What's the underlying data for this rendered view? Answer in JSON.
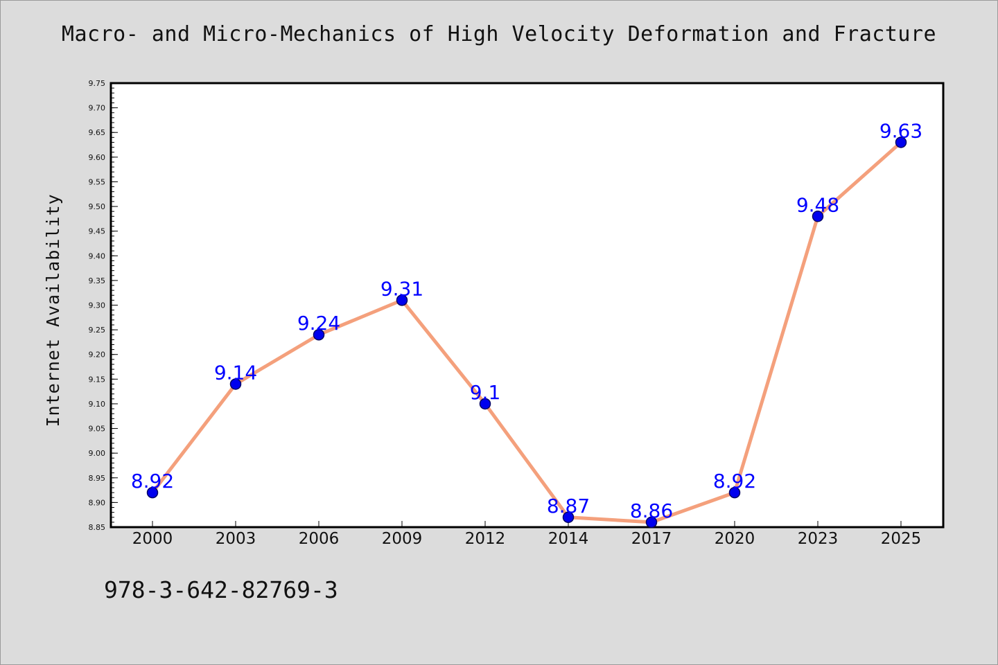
{
  "chart_data": {
    "type": "line",
    "title": "Macro- and Micro-Mechanics of High Velocity Deformation and Fracture",
    "ylabel": "Internet Availability",
    "xlabel": "",
    "categories": [
      "2000",
      "2003",
      "2006",
      "2009",
      "2012",
      "2014",
      "2017",
      "2020",
      "2023",
      "2025"
    ],
    "values": [
      8.92,
      9.14,
      9.24,
      9.31,
      9.1,
      8.87,
      8.86,
      8.92,
      9.48,
      9.63
    ],
    "data_labels": [
      "8.92",
      "9.14",
      "9.24",
      "9.31",
      "9.1",
      "8.87",
      "8.86",
      "8.92",
      "9.48",
      "9.63"
    ],
    "ylim": [
      8.85,
      9.75
    ],
    "y_ticks": [
      "8.85",
      "8.90",
      "8.95",
      "9.00",
      "9.05",
      "9.10",
      "9.15",
      "9.20",
      "9.25",
      "9.30",
      "9.35",
      "9.40",
      "9.45",
      "9.50",
      "9.55",
      "9.60",
      "9.65",
      "9.70",
      "9.75"
    ],
    "grid": false,
    "colors": {
      "line": "#f4a07c",
      "marker": "#0000ee",
      "marker_edge": "#000066",
      "label": "#0000ff"
    }
  },
  "footer": {
    "isbn": "978-3-642-82769-3"
  }
}
